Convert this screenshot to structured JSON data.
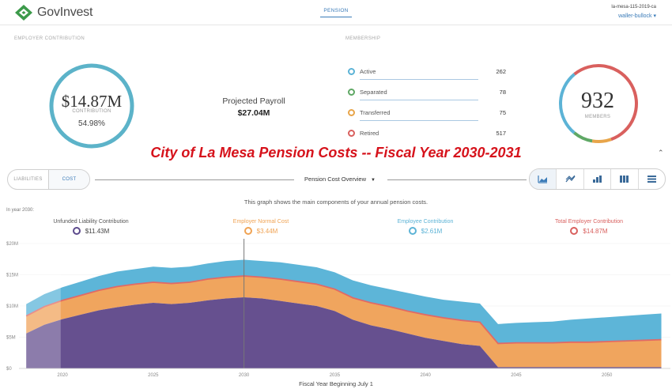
{
  "header": {
    "brand": "GovInvest",
    "nav_tab": "PENSION",
    "account_id": "la-mesa-115-2019-ca",
    "user": "waller-bullock ▾",
    "logo_icon": "govinvest-logo-icon"
  },
  "employer_contribution": {
    "label": "EMPLOYER CONTRIBUTION",
    "amount": "$14.87M",
    "amount_label": "CONTRIBUTION",
    "percent": "54.98%",
    "ring_color": "#5cb3c9",
    "projected_payroll_label": "Projected Payroll",
    "projected_payroll_value": "$27.04M"
  },
  "membership": {
    "label": "MEMBERSHIP",
    "rows": [
      {
        "label": "Active",
        "value": "262",
        "color": "#5cb3d6"
      },
      {
        "label": "Separated",
        "value": "78",
        "color": "#5fa865"
      },
      {
        "label": "Transferred",
        "value": "75",
        "color": "#e8a54a"
      },
      {
        "label": "Retired",
        "value": "517",
        "color": "#d9605e"
      }
    ],
    "total": "932",
    "total_label": "MEMBERS"
  },
  "headline": "City of La Mesa Pension Costs -- Fiscal Year 2030-2031",
  "collapse_icon": "chevron-up-icon",
  "toolbar": {
    "toggle_liabilities": "LIABILITIES",
    "toggle_cost": "COST",
    "view_select": "Pension Cost Overview",
    "chart_type_icons": [
      "area-chart-icon",
      "line-chart-icon",
      "bar-chart-icon",
      "column-chart-icon",
      "table-icon"
    ]
  },
  "graph_description": "This graph shows the main components of your annual pension costs.",
  "in_year_label": "In year 2030:",
  "legend": [
    {
      "label": "Unfunded Liability Contribution",
      "value": "$11.43M",
      "color": "#5c4a8c",
      "label_color": "#555555"
    },
    {
      "label": "Employer Normal Cost",
      "value": "$3.44M",
      "color": "#f0a354",
      "label_color": "#f0a354"
    },
    {
      "label": "Employee Contribution",
      "value": "$2.61M",
      "color": "#5cb3d6",
      "label_color": "#5cb3d6"
    },
    {
      "label": "Total Employer Contribution",
      "value": "$14.87M",
      "color": "#d9605e",
      "label_color": "#d9605e"
    }
  ],
  "chart_data": {
    "type": "area",
    "stacked": true,
    "x_label": "Fiscal Year Beginning July 1",
    "x_ticks": [
      "2020",
      "2025",
      "2030",
      "2035",
      "2040",
      "2045",
      "2050"
    ],
    "y_ticks": [
      "$0",
      "$5M",
      "$10M",
      "$15M",
      "$20M"
    ],
    "ylim": [
      0,
      20
    ],
    "highlight_year": 2030,
    "x": [
      2018,
      2019,
      2020,
      2021,
      2022,
      2023,
      2024,
      2025,
      2026,
      2027,
      2028,
      2029,
      2030,
      2031,
      2032,
      2033,
      2034,
      2035,
      2036,
      2037,
      2038,
      2039,
      2040,
      2041,
      2042,
      2043,
      2044,
      2045,
      2046,
      2047,
      2048,
      2049,
      2050,
      2051,
      2052,
      2053
    ],
    "series": [
      {
        "name": "Unfunded Liability Contribution",
        "color": "#66508f",
        "values": [
          5.6,
          7.0,
          7.9,
          8.6,
          9.3,
          9.8,
          10.2,
          10.5,
          10.3,
          10.5,
          10.9,
          11.2,
          11.4,
          11.2,
          10.8,
          10.4,
          10.0,
          9.2,
          7.8,
          6.9,
          6.3,
          5.6,
          4.9,
          4.4,
          3.9,
          3.6,
          0.2,
          0.2,
          0.2,
          0.2,
          0.2,
          0.2,
          0.2,
          0.2,
          0.2,
          0.2
        ]
      },
      {
        "name": "Employer Normal Cost",
        "color": "#f0a55e",
        "values": [
          2.8,
          2.9,
          3.0,
          3.1,
          3.2,
          3.3,
          3.3,
          3.3,
          3.3,
          3.3,
          3.4,
          3.4,
          3.4,
          3.4,
          3.5,
          3.5,
          3.5,
          3.5,
          3.5,
          3.6,
          3.6,
          3.6,
          3.7,
          3.7,
          3.8,
          3.8,
          3.8,
          3.9,
          3.9,
          3.9,
          4.0,
          4.0,
          4.1,
          4.2,
          4.3,
          4.4
        ]
      },
      {
        "name": "Employee Contribution",
        "color": "#5db5d8",
        "values": [
          1.9,
          2.0,
          2.1,
          2.2,
          2.3,
          2.4,
          2.4,
          2.5,
          2.5,
          2.5,
          2.5,
          2.6,
          2.6,
          2.6,
          2.7,
          2.7,
          2.7,
          2.7,
          2.8,
          2.8,
          2.8,
          2.9,
          2.9,
          2.9,
          3.0,
          3.0,
          3.1,
          3.2,
          3.3,
          3.4,
          3.6,
          3.8,
          3.9,
          4.0,
          4.1,
          4.2
        ]
      }
    ],
    "total_line": {
      "name": "Total Employer Contribution",
      "color": "#e06a66"
    }
  }
}
